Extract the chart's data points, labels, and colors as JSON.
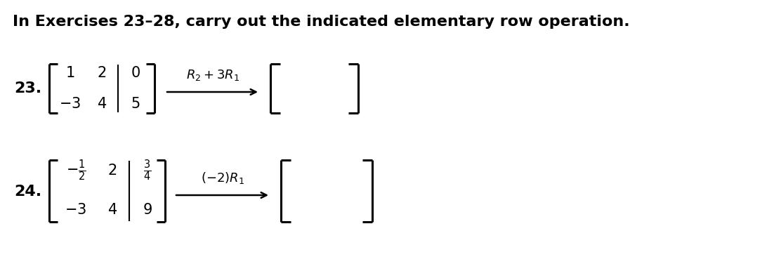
{
  "title": "In Exercises 23–28, carry out the indicated elementary row operation.",
  "background_color": "#ffffff",
  "font_color": "#000000",
  "title_fontsize": 16,
  "label_fontsize": 16,
  "matrix_fontsize": 15,
  "op_fontsize": 13
}
